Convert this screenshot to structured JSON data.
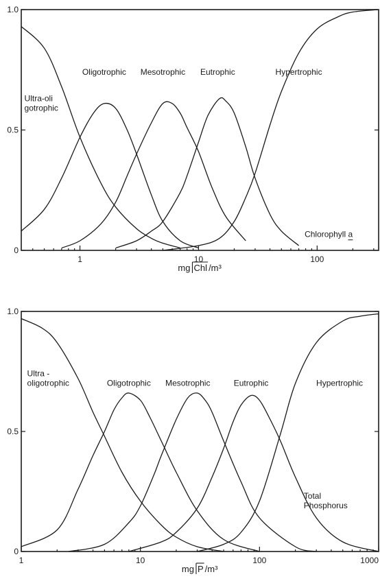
{
  "colors": {
    "ink": "#1a1a1a",
    "paper": "#ffffff"
  },
  "chart_data": [
    {
      "type": "line",
      "xscale": "log",
      "xlim": [
        0.32,
        330
      ],
      "ylim": [
        0,
        1.0
      ],
      "xticks": [
        {
          "value": 1,
          "label": "1"
        },
        {
          "value": 10,
          "label": "10"
        },
        {
          "value": 100,
          "label": "100"
        }
      ],
      "yticks": [
        {
          "value": 0,
          "label": "0"
        },
        {
          "value": 0.5,
          "label": "0.5"
        },
        {
          "value": 1.0,
          "label": "1.0"
        }
      ],
      "xlabel_prefix": "mg",
      "xlabel_symbol": "Chl",
      "xlabel_suffix": "/m³",
      "annotation": "Chlorophyll a",
      "series": [
        {
          "name": "Ultra-oligotrophic",
          "label_lines": [
            "Ultra-oli",
            "gotrophic"
          ],
          "x": [
            0.32,
            0.5,
            0.7,
            1.0,
            1.5,
            2.0,
            3.0,
            4.0,
            5.0,
            7.0
          ],
          "y": [
            0.93,
            0.84,
            0.68,
            0.47,
            0.28,
            0.18,
            0.09,
            0.05,
            0.03,
            0.01
          ]
        },
        {
          "name": "Oligotrophic",
          "label_lines": [
            "Oligotrophic"
          ],
          "x": [
            0.32,
            0.5,
            0.7,
            1.0,
            1.3,
            1.6,
            2.0,
            2.5,
            3.0,
            4.0,
            5.0,
            7.0,
            10.0
          ],
          "y": [
            0.08,
            0.17,
            0.3,
            0.47,
            0.57,
            0.61,
            0.59,
            0.5,
            0.4,
            0.23,
            0.12,
            0.04,
            0.01
          ]
        },
        {
          "name": "Mesotrophic",
          "label_lines": [
            "Mesotrophic"
          ],
          "x": [
            0.7,
            1.0,
            1.5,
            2.0,
            2.5,
            3.0,
            4.0,
            5.0,
            6.0,
            7.0,
            8.0,
            10.0,
            13.0,
            17.0,
            25.0
          ],
          "y": [
            0.01,
            0.04,
            0.11,
            0.2,
            0.31,
            0.4,
            0.53,
            0.61,
            0.61,
            0.57,
            0.51,
            0.41,
            0.26,
            0.14,
            0.04
          ]
        },
        {
          "name": "Eutrophic",
          "label_lines": [
            "Eutrophic"
          ],
          "x": [
            2.0,
            3.0,
            4.0,
            5.0,
            7.0,
            8.0,
            10.0,
            12.0,
            15.0,
            17.0,
            20.0,
            25.0,
            30.0,
            40.0,
            50.0,
            70.0
          ],
          "y": [
            0.01,
            0.04,
            0.08,
            0.12,
            0.24,
            0.31,
            0.45,
            0.56,
            0.63,
            0.62,
            0.57,
            0.43,
            0.3,
            0.15,
            0.08,
            0.02
          ]
        },
        {
          "name": "Hypertrophic",
          "label_lines": [
            "Hypertrophic"
          ],
          "x": [
            5.0,
            10.0,
            15.0,
            20.0,
            25.0,
            30.0,
            40.0,
            50.0,
            70.0,
            100.0,
            150.0,
            200.0,
            330.0
          ],
          "y": [
            0.0,
            0.02,
            0.05,
            0.12,
            0.22,
            0.32,
            0.52,
            0.66,
            0.82,
            0.92,
            0.97,
            0.99,
            1.0
          ]
        }
      ]
    },
    {
      "type": "line",
      "xscale": "log",
      "xlim": [
        1,
        1000
      ],
      "ylim": [
        0,
        1.0
      ],
      "xticks": [
        {
          "value": 1,
          "label": "1"
        },
        {
          "value": 10,
          "label": "10"
        },
        {
          "value": 100,
          "label": "100"
        },
        {
          "value": 1000,
          "label": "1000"
        }
      ],
      "yticks": [
        {
          "value": 0,
          "label": "0"
        },
        {
          "value": 0.5,
          "label": "0.5"
        },
        {
          "value": 1.0,
          "label": "1.0"
        }
      ],
      "xlabel_prefix": "mg",
      "xlabel_symbol": "P",
      "xlabel_suffix": "/m³",
      "annotation_lines": [
        "Total",
        "Phosphorus"
      ],
      "series": [
        {
          "name": "Ultra-oligotrophic",
          "label_lines": [
            "Ultra -",
            "oligotrophic"
          ],
          "x": [
            1.0,
            1.5,
            2.0,
            3.0,
            4.0,
            5.0,
            7.0,
            10.0,
            15.0,
            20.0,
            30.0,
            50.0
          ],
          "y": [
            0.97,
            0.93,
            0.87,
            0.72,
            0.58,
            0.48,
            0.33,
            0.21,
            0.11,
            0.06,
            0.02,
            0.0
          ]
        },
        {
          "name": "Oligotrophic",
          "label_lines": [
            "Oligotrophic"
          ],
          "x": [
            1.0,
            2.0,
            3.0,
            4.0,
            5.0,
            6.0,
            7.0,
            8.0,
            10.0,
            12.0,
            15.0,
            20.0,
            30.0,
            50.0,
            100.0
          ],
          "y": [
            0.02,
            0.09,
            0.26,
            0.4,
            0.5,
            0.59,
            0.64,
            0.66,
            0.63,
            0.56,
            0.46,
            0.33,
            0.17,
            0.05,
            0.0
          ]
        },
        {
          "name": "Mesotrophic",
          "label_lines": [
            "Mesotrophic"
          ],
          "x": [
            2.5,
            5.0,
            8.0,
            10.0,
            13.0,
            15.0,
            20.0,
            25.0,
            30.0,
            35.0,
            40.0,
            50.0,
            70.0,
            100.0,
            200.0,
            300.0
          ],
          "y": [
            0.0,
            0.03,
            0.12,
            0.19,
            0.32,
            0.4,
            0.55,
            0.64,
            0.66,
            0.63,
            0.58,
            0.46,
            0.29,
            0.14,
            0.02,
            0.0
          ]
        },
        {
          "name": "Eutrophic",
          "label_lines": [
            "Eutrophic"
          ],
          "x": [
            8.0,
            15.0,
            20.0,
            30.0,
            40.0,
            50.0,
            60.0,
            70.0,
            85.0,
            100.0,
            120.0,
            150.0,
            200.0,
            300.0,
            500.0,
            1000.0
          ],
          "y": [
            0.0,
            0.04,
            0.08,
            0.18,
            0.31,
            0.43,
            0.54,
            0.61,
            0.65,
            0.63,
            0.56,
            0.46,
            0.31,
            0.14,
            0.04,
            0.0
          ]
        },
        {
          "name": "Hypertrophic",
          "label_lines": [
            "Hypertrophic"
          ],
          "x": [
            30.0,
            50.0,
            70.0,
            100.0,
            150.0,
            200.0,
            300.0,
            500.0,
            700.0,
            1000.0
          ],
          "y": [
            0.0,
            0.03,
            0.08,
            0.21,
            0.49,
            0.7,
            0.87,
            0.96,
            0.98,
            0.99
          ]
        }
      ]
    }
  ]
}
